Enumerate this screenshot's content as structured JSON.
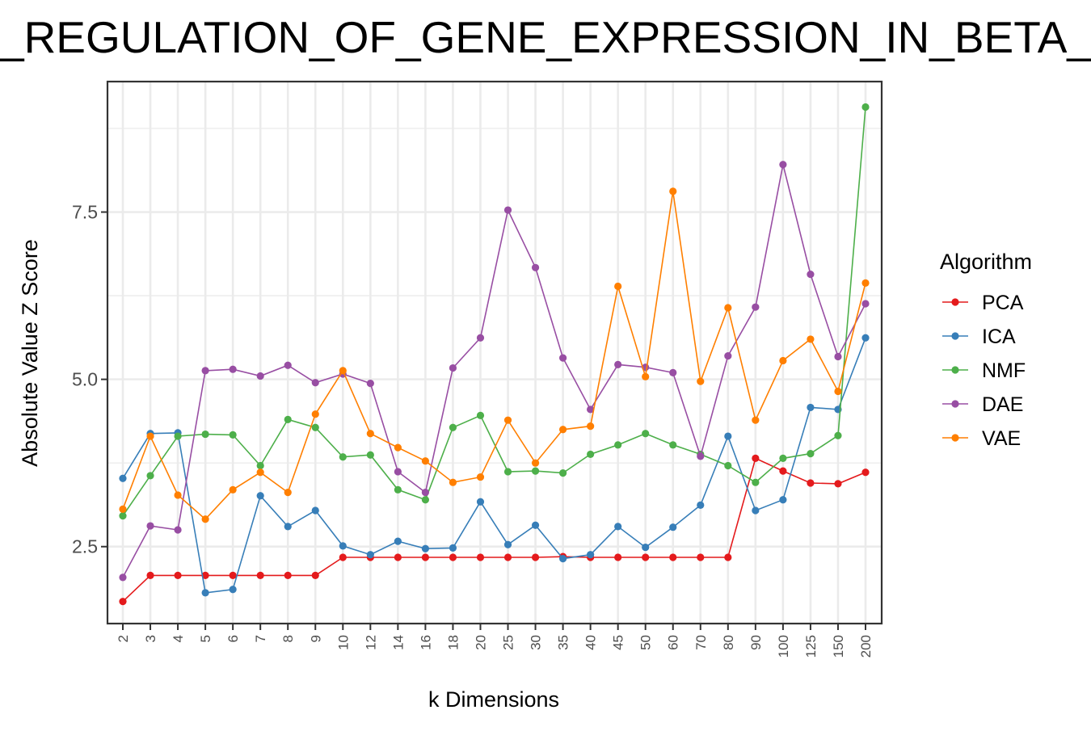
{
  "chart_data": {
    "type": "line",
    "title": "_REGULATION_OF_GENE_EXPRESSION_IN_BETA_",
    "xlabel": "k Dimensions",
    "ylabel": "Absolute Value Z Score",
    "categories": [
      "2",
      "3",
      "4",
      "5",
      "6",
      "7",
      "8",
      "9",
      "10",
      "12",
      "14",
      "16",
      "18",
      "20",
      "25",
      "30",
      "35",
      "40",
      "45",
      "50",
      "60",
      "70",
      "80",
      "90",
      "100",
      "125",
      "150",
      "200"
    ],
    "yticks": [
      2.5,
      5.0,
      7.5
    ],
    "ytick_labels": [
      "2.5",
      "5.0",
      "7.5"
    ],
    "ylim": [
      1.35,
      9.45
    ],
    "grid": true,
    "legend": {
      "title": "Algorithm",
      "position": "right"
    },
    "series": [
      {
        "name": "PCA",
        "color": "#E41A1C",
        "values": [
          1.68,
          2.07,
          2.07,
          2.07,
          2.07,
          2.07,
          2.07,
          2.07,
          2.34,
          2.34,
          2.34,
          2.34,
          2.34,
          2.34,
          2.34,
          2.34,
          2.35,
          2.34,
          2.34,
          2.34,
          2.34,
          2.34,
          2.34,
          3.82,
          3.63,
          3.45,
          3.44,
          3.61
        ]
      },
      {
        "name": "ICA",
        "color": "#377EB8",
        "values": [
          3.52,
          4.19,
          4.2,
          1.81,
          1.86,
          3.26,
          2.8,
          3.04,
          2.51,
          2.38,
          2.58,
          2.47,
          2.48,
          3.17,
          2.53,
          2.82,
          2.32,
          2.38,
          2.8,
          2.49,
          2.79,
          3.12,
          4.15,
          3.04,
          3.2,
          4.58,
          4.55,
          5.62
        ]
      },
      {
        "name": "NMF",
        "color": "#4DAF4A",
        "values": [
          2.96,
          3.56,
          4.15,
          4.18,
          4.17,
          3.71,
          4.4,
          4.28,
          3.84,
          3.87,
          3.35,
          3.2,
          4.28,
          4.46,
          3.62,
          3.63,
          3.6,
          3.88,
          4.02,
          4.19,
          4.02,
          3.88,
          3.71,
          3.46,
          3.82,
          3.89,
          4.16,
          9.07
        ]
      },
      {
        "name": "DAE",
        "color": "#984EA3",
        "values": [
          2.04,
          2.81,
          2.75,
          5.13,
          5.15,
          5.05,
          5.21,
          4.95,
          5.08,
          4.94,
          3.62,
          3.31,
          5.17,
          5.62,
          7.53,
          6.67,
          5.32,
          4.55,
          5.22,
          5.18,
          5.1,
          3.85,
          5.35,
          6.08,
          8.21,
          6.57,
          5.34,
          6.13
        ]
      },
      {
        "name": "VAE",
        "color": "#FF7F00",
        "values": [
          3.06,
          4.15,
          3.27,
          2.91,
          3.35,
          3.61,
          3.31,
          4.48,
          5.13,
          4.19,
          3.98,
          3.78,
          3.46,
          3.54,
          4.39,
          3.75,
          4.25,
          4.3,
          6.39,
          5.04,
          7.81,
          4.97,
          6.07,
          4.39,
          5.28,
          5.6,
          4.82,
          6.44
        ]
      }
    ]
  }
}
